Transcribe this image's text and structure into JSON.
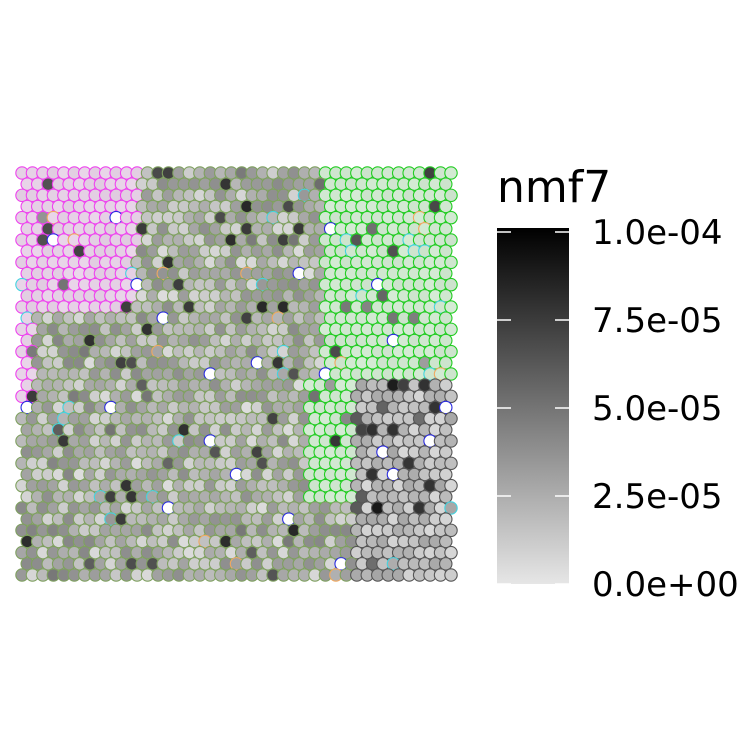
{
  "chart_data": {
    "type": "scatter",
    "title": "",
    "xlabel": "",
    "ylabel": "",
    "grid": false,
    "legend_placement": "right",
    "legend": {
      "title": "nmf7",
      "ticks": [
        {
          "value": 0.0001,
          "label": "1.0e-04"
        },
        {
          "value": 7.5e-05,
          "label": "7.5e-05"
        },
        {
          "value": 5e-05,
          "label": "5.0e-05"
        },
        {
          "value": 2.5e-05,
          "label": "2.5e-05"
        },
        {
          "value": 0,
          "label": "0.0e+00"
        }
      ],
      "range": [
        0,
        0.0001
      ],
      "gradient_colors": [
        "#e6e6e6",
        "#000000"
      ]
    },
    "grid_shape": {
      "columns": 42,
      "rows": 37
    },
    "regions": [
      {
        "name": "left-top",
        "outline_color": "#ee44ee"
      },
      {
        "name": "center",
        "outline_color": "#7fa060"
      },
      {
        "name": "right-green",
        "outline_color": "#22cc22"
      },
      {
        "name": "right-lower",
        "outline_color": "#555555"
      }
    ],
    "accent_colors": {
      "blue": "#2a2ae0",
      "cyan": "#44d4e0",
      "orange": "#f0a860"
    }
  }
}
